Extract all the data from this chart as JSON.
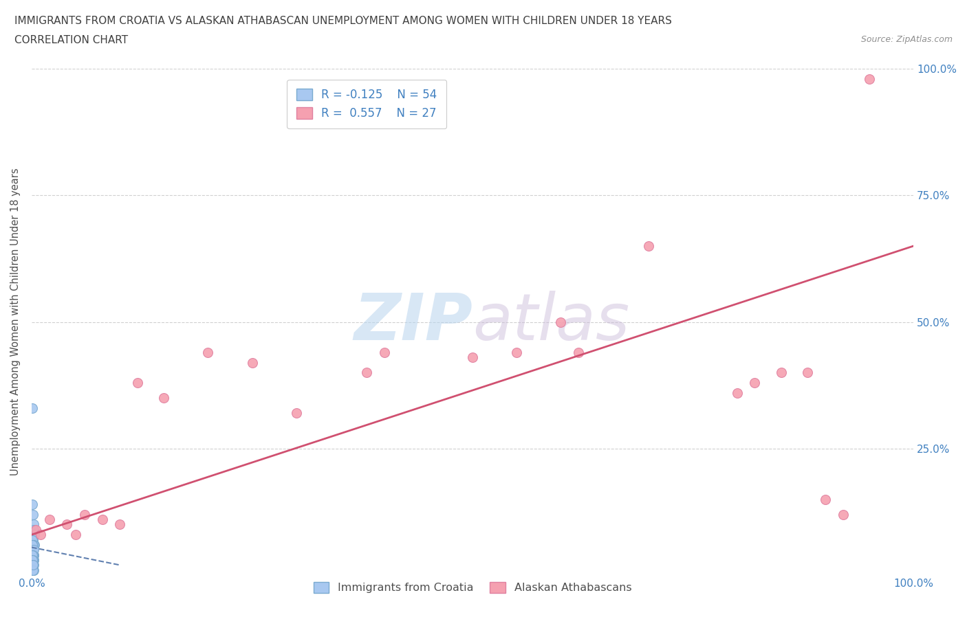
{
  "title": "IMMIGRANTS FROM CROATIA VS ALASKAN ATHABASCAN UNEMPLOYMENT AMONG WOMEN WITH CHILDREN UNDER 18 YEARS",
  "subtitle": "CORRELATION CHART",
  "source": "Source: ZipAtlas.com",
  "ylabel": "Unemployment Among Women with Children Under 18 years",
  "xlim": [
    0,
    1.0
  ],
  "ylim": [
    0,
    1.0
  ],
  "blue_R": -0.125,
  "blue_N": 54,
  "pink_R": 0.557,
  "pink_N": 27,
  "blue_color": "#a8c8f0",
  "pink_color": "#f5a0b0",
  "blue_edge_color": "#7aaad0",
  "pink_edge_color": "#e080a0",
  "blue_scatter_x": [
    0.0005,
    0.001,
    0.0015,
    0.002,
    0.0005,
    0.001,
    0.0008,
    0.0012,
    0.0018,
    0.0025,
    0.003,
    0.0015,
    0.001,
    0.002,
    0.0025,
    0.003,
    0.0008,
    0.0005,
    0.001,
    0.0015,
    0.002,
    0.001,
    0.0012,
    0.0008,
    0.0018,
    0.0022,
    0.001,
    0.0015,
    0.002,
    0.0008,
    0.001,
    0.0012,
    0.0018,
    0.0025,
    0.001,
    0.0008,
    0.0015,
    0.002,
    0.001,
    0.0008,
    0.0012,
    0.0018,
    0.001,
    0.0015,
    0.0008,
    0.001,
    0.0012,
    0.002,
    0.001,
    0.0015,
    0.0008,
    0.001,
    0.0012,
    0.0018
  ],
  "blue_scatter_y": [
    0.33,
    0.14,
    0.12,
    0.1,
    0.08,
    0.06,
    0.05,
    0.04,
    0.07,
    0.09,
    0.08,
    0.06,
    0.05,
    0.04,
    0.03,
    0.06,
    0.05,
    0.07,
    0.04,
    0.05,
    0.06,
    0.03,
    0.04,
    0.05,
    0.03,
    0.04,
    0.06,
    0.05,
    0.03,
    0.04,
    0.06,
    0.03,
    0.04,
    0.05,
    0.02,
    0.03,
    0.04,
    0.02,
    0.03,
    0.04,
    0.02,
    0.03,
    0.01,
    0.02,
    0.03,
    0.01,
    0.02,
    0.01,
    0.02,
    0.01,
    0.02,
    0.01,
    0.01,
    0.02
  ],
  "pink_scatter_x": [
    0.005,
    0.01,
    0.02,
    0.04,
    0.05,
    0.06,
    0.08,
    0.1,
    0.12,
    0.15,
    0.2,
    0.25,
    0.3,
    0.38,
    0.4,
    0.5,
    0.55,
    0.6,
    0.62,
    0.7,
    0.8,
    0.82,
    0.85,
    0.88,
    0.9,
    0.92,
    0.95
  ],
  "pink_scatter_y": [
    0.09,
    0.08,
    0.11,
    0.1,
    0.08,
    0.12,
    0.11,
    0.1,
    0.38,
    0.35,
    0.44,
    0.42,
    0.32,
    0.4,
    0.44,
    0.43,
    0.44,
    0.5,
    0.44,
    0.65,
    0.36,
    0.38,
    0.4,
    0.4,
    0.15,
    0.12,
    0.98
  ],
  "blue_trend_x": [
    0.0,
    0.1
  ],
  "blue_trend_y": [
    0.055,
    0.02
  ],
  "pink_trend_x": [
    0.0,
    1.0
  ],
  "pink_trend_y": [
    0.08,
    0.65
  ],
  "watermark_zip": "ZIP",
  "watermark_atlas": "atlas",
  "grid_color": "#d0d0d0",
  "background_color": "#ffffff",
  "title_color": "#404040",
  "axis_label_color": "#4080c0",
  "legend_label_color": "#4080c0",
  "ylabel_color": "#505050",
  "source_color": "#909090"
}
